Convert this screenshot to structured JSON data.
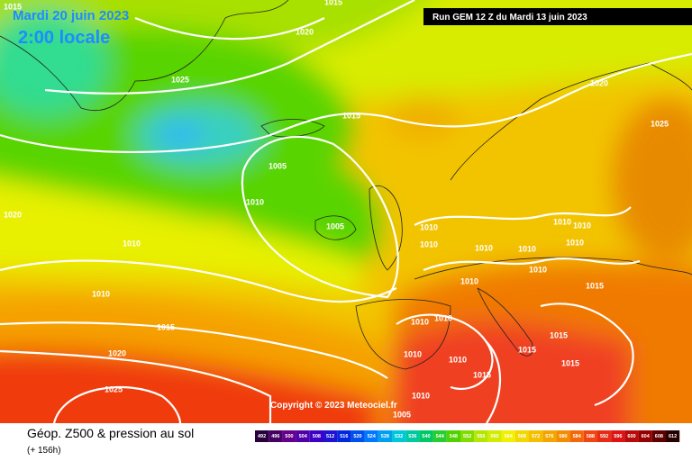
{
  "header": {
    "date": "Mardi 20 juin 2023",
    "time": "2:00 locale",
    "run": "Run GEM 12 Z du Mardi 13 juin 2023"
  },
  "copyright": "Copyright © 2023 Meteociel.fr",
  "footer": {
    "title": "Géop. Z500 & pression au sol",
    "lead": "(+ 156h)"
  },
  "legend": {
    "levels": [
      492,
      496,
      500,
      504,
      508,
      512,
      516,
      520,
      524,
      528,
      532,
      536,
      540,
      544,
      548,
      552,
      556,
      560,
      564,
      568,
      572,
      576,
      580,
      584,
      588,
      592,
      596,
      600,
      604,
      608,
      612
    ]
  },
  "isobar_labels": [
    1015,
    1015,
    1020,
    1025,
    1015,
    1020,
    1025,
    1005,
    1010,
    1005,
    1020,
    1010,
    1010,
    1010,
    1010,
    1010,
    1010,
    1010,
    1010,
    1010,
    1010,
    1015,
    1010,
    1015,
    1010,
    1010,
    1015,
    1020,
    1010,
    1015,
    1010,
    1015,
    1015,
    1010,
    1025,
    1005
  ]
}
